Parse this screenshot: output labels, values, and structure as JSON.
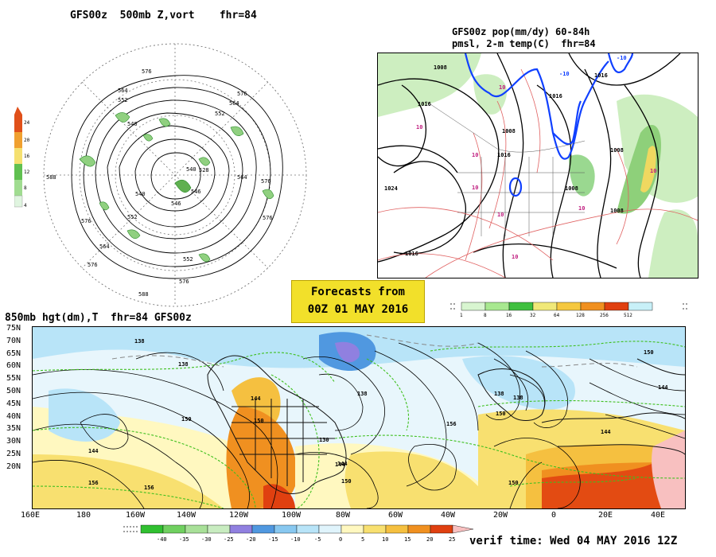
{
  "polar_panel": {
    "title": "GFS00z  500mb Z,vort    fhr=84",
    "contour_labels": [
      "576",
      "564",
      "552",
      "540",
      "528",
      "576",
      "564",
      "552",
      "540",
      "546",
      "576",
      "564",
      "576",
      "588",
      "576",
      "552",
      "540",
      "546",
      "576",
      "552",
      "564",
      "576",
      "588"
    ],
    "vorticity_legend": {
      "ticks": [
        "24",
        "20",
        "16",
        "12",
        "8",
        "4"
      ],
      "colors": [
        "#e0501a",
        "#f0a030",
        "#f5e070",
        "#60c050",
        "#a0dc90",
        "#e0f5e0"
      ]
    }
  },
  "na_panel": {
    "title_line1": "GFS00z pop(mm/dy) 60-84h",
    "title_line2": "pmsl, 2-m temp(C)  fhr=84",
    "pressure_labels": [
      "1008",
      "1016",
      "1016",
      "1024",
      "1008",
      "1016",
      "1016",
      "1008",
      "1008",
      "1008",
      "1016"
    ],
    "temp_labels": [
      "-10",
      "-10",
      "10",
      "10",
      "10",
      "10",
      "10",
      "10",
      "10",
      "10"
    ],
    "precip_legend": {
      "ticks": [
        "1",
        "8",
        "16",
        "32",
        "64",
        "128",
        "256",
        "512"
      ],
      "colors": [
        "#d8f5d0",
        "#a8e890",
        "#40c040",
        "#f0e878",
        "#f5c840",
        "#f09020",
        "#e04010",
        "#c8f0f8"
      ]
    }
  },
  "forecast_box": {
    "line1": "Forecasts from",
    "line2": "00Z 01 MAY 2016"
  },
  "global_panel": {
    "title": "850mb hgt(dm),T  fhr=84 GFS00z",
    "lat_ticks": [
      "75N",
      "70N",
      "65N",
      "60N",
      "55N",
      "50N",
      "45N",
      "40N",
      "35N",
      "30N",
      "25N",
      "20N"
    ],
    "lon_ticks": [
      "160E",
      "180",
      "160W",
      "140W",
      "120W",
      "100W",
      "80W",
      "60W",
      "40W",
      "20W",
      "0",
      "20E",
      "40E"
    ],
    "height_labels": [
      "138",
      "138",
      "144",
      "150",
      "144",
      "156",
      "156",
      "150",
      "144",
      "138",
      "138",
      "130",
      "144",
      "150",
      "156",
      "150",
      "144",
      "138",
      "150",
      "144",
      "150"
    ],
    "temp_legend": {
      "ticks": [
        "-40",
        "-35",
        "-30",
        "-25",
        "-20",
        "-15",
        "-10",
        "-5",
        "0",
        "5",
        "10",
        "15",
        "20",
        "25"
      ],
      "colors": [
        "#30c030",
        "#70d060",
        "#a8e098",
        "#c8ecc0",
        "#9080e0",
        "#5098e0",
        "#88c8f0",
        "#b8e4f8",
        "#e0f4fc",
        "#fff8c0",
        "#f8e070",
        "#f5c040",
        "#f09020",
        "#e04010",
        "#f8c0c0"
      ]
    }
  },
  "verif_time": "verif time: Wed 04 MAY 2016 12Z"
}
